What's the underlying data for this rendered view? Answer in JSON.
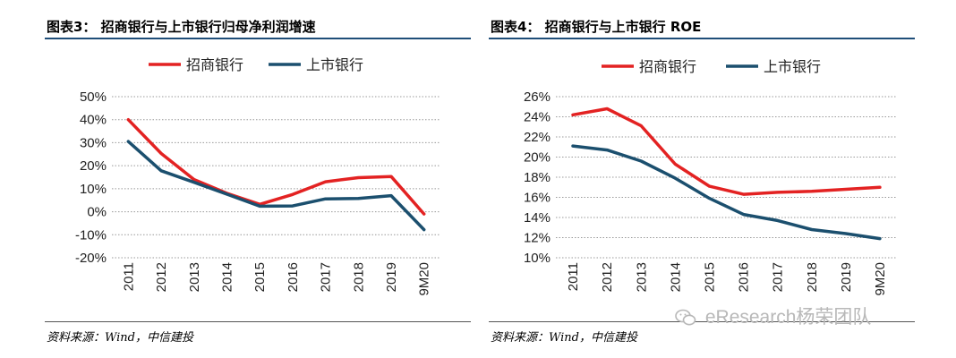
{
  "charts": [
    {
      "title": "图表3： 招商银行与上市银行归母净利润增速",
      "source": "资料来源：Wind，中信建投"
    },
    {
      "title": "图表4： 招商银行与上市银行 ROE",
      "source": "资料来源：Wind，中信建投"
    }
  ],
  "watermark": {
    "text": "eResearch杨荣团队",
    "icon": "wechat-icon"
  },
  "colors": {
    "cmb": "#e32222",
    "listed": "#1b4f6e",
    "grid": "#999999"
  },
  "chart_data": [
    {
      "type": "line",
      "title": "图表3： 招商银行与上市银行归母净利润增速",
      "categories": [
        "2011",
        "2012",
        "2013",
        "2014",
        "2015",
        "2016",
        "2017",
        "2018",
        "2019",
        "9M20"
      ],
      "series": [
        {
          "name": "招商银行",
          "values": [
            40,
            25.3,
            14,
            8,
            3.2,
            7.5,
            13,
            14.8,
            15.3,
            -1
          ]
        },
        {
          "name": "上市银行",
          "values": [
            30.5,
            17.8,
            12.8,
            7.6,
            2.4,
            2.5,
            5.6,
            5.8,
            7,
            -7.8
          ]
        }
      ],
      "yticks": [
        "50%",
        "40%",
        "30%",
        "20%",
        "10%",
        "0%",
        "-10%",
        "-20%"
      ],
      "ylim": [
        -20,
        50
      ],
      "ystep": 10,
      "xlabel": "",
      "ylabel": "",
      "legend": "top-center",
      "grid": true
    },
    {
      "type": "line",
      "title": "图表4： 招商银行与上市银行 ROE",
      "categories": [
        "2011",
        "2012",
        "2013",
        "2014",
        "2015",
        "2016",
        "2017",
        "2018",
        "2019",
        "9M20"
      ],
      "series": [
        {
          "name": "招商银行",
          "values": [
            24.2,
            24.8,
            23.1,
            19.3,
            17.1,
            16.3,
            16.5,
            16.6,
            16.8,
            17
          ]
        },
        {
          "name": "上市银行",
          "values": [
            21.1,
            20.7,
            19.6,
            17.9,
            15.9,
            14.3,
            13.7,
            12.8,
            12.4,
            11.9
          ]
        }
      ],
      "yticks": [
        "26%",
        "24%",
        "22%",
        "20%",
        "18%",
        "16%",
        "14%",
        "12%",
        "10%"
      ],
      "ylim": [
        10,
        26
      ],
      "ystep": 2,
      "xlabel": "",
      "ylabel": "",
      "legend": "top-center",
      "grid": true
    }
  ]
}
